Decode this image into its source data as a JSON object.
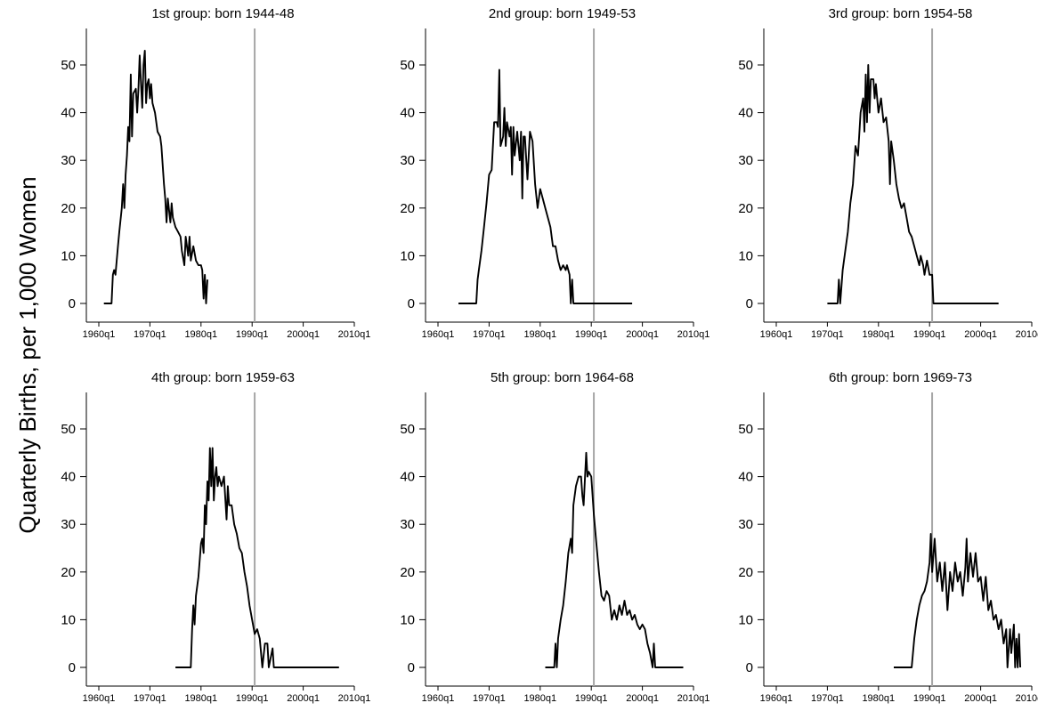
{
  "chart_data": {
    "type": "line",
    "ylabel": "Quarterly Births, per 1,000 Women",
    "ylim": [
      0,
      55
    ],
    "xlim": [
      "1960q1",
      "2010q1"
    ],
    "yticks": [
      0,
      10,
      20,
      30,
      40,
      50
    ],
    "xticks": [
      "1960q1",
      "1970q1",
      "1980q1",
      "1990q1",
      "2000q1",
      "2010q1"
    ],
    "reference_line_x": "1990q3",
    "panels": [
      {
        "title": "1st group: born 1944-48",
        "points": [
          [
            "1961q1",
            0
          ],
          [
            "1962q3",
            0
          ],
          [
            "1962q4",
            6
          ],
          [
            "1963q1",
            7
          ],
          [
            "1963q2",
            6
          ],
          [
            "1963q4",
            12
          ],
          [
            "1964q1",
            15
          ],
          [
            "1964q3",
            20
          ],
          [
            "1964q4",
            25
          ],
          [
            "1965q1",
            20
          ],
          [
            "1965q2",
            27
          ],
          [
            "1965q3",
            31
          ],
          [
            "1965q4",
            37
          ],
          [
            "1966q1",
            34
          ],
          [
            "1966q2",
            48
          ],
          [
            "1966q3",
            35
          ],
          [
            "1966q4",
            44
          ],
          [
            "1967q2",
            45
          ],
          [
            "1967q3",
            40
          ],
          [
            "1967q4",
            45
          ],
          [
            "1968q1",
            52
          ],
          [
            "1968q2",
            46
          ],
          [
            "1968q3",
            41
          ],
          [
            "1968q4",
            50
          ],
          [
            "1969q1",
            53
          ],
          [
            "1969q2",
            42
          ],
          [
            "1969q3",
            46
          ],
          [
            "1969q4",
            47
          ],
          [
            "1970q1",
            43
          ],
          [
            "1970q2",
            46
          ],
          [
            "1970q3",
            42
          ],
          [
            "1971q1",
            40
          ],
          [
            "1971q3",
            36
          ],
          [
            "1972q1",
            35
          ],
          [
            "1972q2",
            33
          ],
          [
            "1972q4",
            25
          ],
          [
            "1973q1",
            22
          ],
          [
            "1973q2",
            17
          ],
          [
            "1973q3",
            22
          ],
          [
            "1974q1",
            17
          ],
          [
            "1974q2",
            21
          ],
          [
            "1974q3",
            18
          ],
          [
            "1975q1",
            16
          ],
          [
            "1975q3",
            15
          ],
          [
            "1976q1",
            14
          ],
          [
            "1976q2",
            11
          ],
          [
            "1976q4",
            8
          ],
          [
            "1977q1",
            14
          ],
          [
            "1977q3",
            10
          ],
          [
            "1977q4",
            14
          ],
          [
            "1978q1",
            9
          ],
          [
            "1978q3",
            12
          ],
          [
            "1979q1",
            9
          ],
          [
            "1979q3",
            8
          ],
          [
            "1980q1",
            8
          ],
          [
            "1980q2",
            7
          ],
          [
            "1980q3",
            1
          ],
          [
            "1980q4",
            6
          ],
          [
            "1981q1",
            0
          ],
          [
            "1981q2",
            5
          ]
        ]
      },
      {
        "title": "2nd group: born 1949-53",
        "points": [
          [
            "1964q1",
            0
          ],
          [
            "1967q3",
            0
          ],
          [
            "1967q4",
            5
          ],
          [
            "1968q1",
            7
          ],
          [
            "1968q3",
            11
          ],
          [
            "1969q1",
            16
          ],
          [
            "1969q3",
            21
          ],
          [
            "1970q1",
            27
          ],
          [
            "1970q3",
            28
          ],
          [
            "1971q1",
            38
          ],
          [
            "1971q3",
            38
          ],
          [
            "1971q4",
            37
          ],
          [
            "1972q1",
            49
          ],
          [
            "1972q2",
            33
          ],
          [
            "1972q4",
            35
          ],
          [
            "1973q1",
            41
          ],
          [
            "1973q2",
            33
          ],
          [
            "1973q3",
            38
          ],
          [
            "1974q1",
            35
          ],
          [
            "1974q2",
            37
          ],
          [
            "1974q3",
            27
          ],
          [
            "1974q4",
            37
          ],
          [
            "1975q1",
            31
          ],
          [
            "1975q3",
            36
          ],
          [
            "1976q1",
            30
          ],
          [
            "1976q2",
            36
          ],
          [
            "1976q3",
            22
          ],
          [
            "1976q4",
            35
          ],
          [
            "1977q1",
            35
          ],
          [
            "1977q3",
            26
          ],
          [
            "1978q1",
            36
          ],
          [
            "1978q3",
            34
          ],
          [
            "1979q1",
            25
          ],
          [
            "1979q3",
            20
          ],
          [
            "1980q1",
            24
          ],
          [
            "1980q3",
            22
          ],
          [
            "1981q1",
            20
          ],
          [
            "1981q3",
            18
          ],
          [
            "1982q1",
            16
          ],
          [
            "1982q3",
            12
          ],
          [
            "1983q1",
            12
          ],
          [
            "1983q3",
            9
          ],
          [
            "1984q1",
            7
          ],
          [
            "1984q3",
            8
          ],
          [
            "1985q1",
            7
          ],
          [
            "1985q2",
            8
          ],
          [
            "1985q4",
            6
          ],
          [
            "1986q1",
            0
          ],
          [
            "1986q2",
            5
          ],
          [
            "1986q3",
            0
          ],
          [
            "1998q1",
            0
          ]
        ]
      },
      {
        "title": "3rd group: born 1954-58",
        "points": [
          [
            "1970q1",
            0
          ],
          [
            "1972q1",
            0
          ],
          [
            "1972q2",
            5
          ],
          [
            "1972q3",
            0
          ],
          [
            "1973q1",
            7
          ],
          [
            "1973q3",
            11
          ],
          [
            "1974q1",
            15
          ],
          [
            "1974q3",
            21
          ],
          [
            "1975q1",
            25
          ],
          [
            "1975q3",
            33
          ],
          [
            "1976q1",
            31
          ],
          [
            "1976q3",
            40
          ],
          [
            "1977q1",
            43
          ],
          [
            "1977q2",
            36
          ],
          [
            "1977q3",
            48
          ],
          [
            "1977q4",
            38
          ],
          [
            "1978q1",
            50
          ],
          [
            "1978q2",
            40
          ],
          [
            "1978q3",
            47
          ],
          [
            "1979q1",
            47
          ],
          [
            "1979q2",
            43
          ],
          [
            "1979q3",
            46
          ],
          [
            "1980q1",
            40
          ],
          [
            "1980q3",
            43
          ],
          [
            "1981q1",
            38
          ],
          [
            "1981q3",
            39
          ],
          [
            "1982q1",
            34
          ],
          [
            "1982q2",
            25
          ],
          [
            "1982q3",
            34
          ],
          [
            "1983q1",
            30
          ],
          [
            "1983q3",
            25
          ],
          [
            "1984q1",
            22
          ],
          [
            "1984q3",
            20
          ],
          [
            "1985q1",
            21
          ],
          [
            "1985q3",
            18
          ],
          [
            "1986q1",
            15
          ],
          [
            "1986q3",
            14
          ],
          [
            "1987q1",
            12
          ],
          [
            "1987q3",
            10
          ],
          [
            "1988q1",
            8
          ],
          [
            "1988q2",
            10
          ],
          [
            "1988q4",
            8
          ],
          [
            "1989q1",
            6
          ],
          [
            "1989q3",
            9
          ],
          [
            "1990q1",
            6
          ],
          [
            "1990q3",
            6
          ],
          [
            "1990q4",
            0
          ],
          [
            "2003q3",
            0
          ]
        ]
      },
      {
        "title": "4th group: born 1959-63",
        "points": [
          [
            "1975q1",
            0
          ],
          [
            "1978q1",
            0
          ],
          [
            "1978q2",
            8
          ],
          [
            "1978q3",
            13
          ],
          [
            "1978q4",
            9
          ],
          [
            "1979q1",
            15
          ],
          [
            "1979q3",
            19
          ],
          [
            "1980q1",
            26
          ],
          [
            "1980q2",
            27
          ],
          [
            "1980q3",
            24
          ],
          [
            "1980q4",
            34
          ],
          [
            "1981q1",
            30
          ],
          [
            "1981q2",
            39
          ],
          [
            "1981q3",
            35
          ],
          [
            "1981q4",
            46
          ],
          [
            "1982q1",
            38
          ],
          [
            "1982q2",
            46
          ],
          [
            "1982q3",
            35
          ],
          [
            "1982q4",
            40
          ],
          [
            "1983q1",
            42
          ],
          [
            "1983q2",
            38
          ],
          [
            "1983q3",
            40
          ],
          [
            "1984q1",
            38
          ],
          [
            "1984q3",
            40
          ],
          [
            "1985q1",
            31
          ],
          [
            "1985q2",
            38
          ],
          [
            "1985q3",
            34
          ],
          [
            "1986q1",
            34
          ],
          [
            "1986q3",
            30
          ],
          [
            "1987q1",
            28
          ],
          [
            "1987q3",
            25
          ],
          [
            "1988q1",
            24
          ],
          [
            "1988q3",
            20
          ],
          [
            "1989q1",
            17
          ],
          [
            "1989q3",
            13
          ],
          [
            "1990q1",
            10
          ],
          [
            "1990q3",
            7
          ],
          [
            "1991q1",
            8
          ],
          [
            "1991q3",
            6
          ],
          [
            "1992q1",
            0
          ],
          [
            "1992q3",
            5
          ],
          [
            "1993q1",
            5
          ],
          [
            "1993q2",
            0
          ],
          [
            "1994q1",
            4
          ],
          [
            "1994q2",
            0
          ],
          [
            "2007q1",
            0
          ]
        ]
      },
      {
        "title": "5th group: born 1964-68",
        "points": [
          [
            "1981q1",
            0
          ],
          [
            "1982q4",
            0
          ],
          [
            "1983q1",
            5
          ],
          [
            "1983q2",
            0
          ],
          [
            "1983q3",
            6
          ],
          [
            "1984q1",
            10
          ],
          [
            "1984q3",
            13
          ],
          [
            "1985q1",
            18
          ],
          [
            "1985q3",
            24
          ],
          [
            "1986q1",
            27
          ],
          [
            "1986q2",
            24
          ],
          [
            "1986q3",
            34
          ],
          [
            "1987q1",
            38
          ],
          [
            "1987q3",
            40
          ],
          [
            "1988q1",
            40
          ],
          [
            "1988q2",
            36
          ],
          [
            "1988q3",
            34
          ],
          [
            "1989q1",
            45
          ],
          [
            "1989q2",
            40
          ],
          [
            "1989q3",
            41
          ],
          [
            "1990q1",
            40
          ],
          [
            "1990q3",
            32
          ],
          [
            "1991q1",
            26
          ],
          [
            "1991q3",
            20
          ],
          [
            "1992q1",
            15
          ],
          [
            "1992q3",
            14
          ],
          [
            "1993q1",
            16
          ],
          [
            "1993q3",
            15
          ],
          [
            "1994q1",
            10
          ],
          [
            "1994q3",
            12
          ],
          [
            "1995q1",
            10
          ],
          [
            "1995q3",
            13
          ],
          [
            "1996q1",
            11
          ],
          [
            "1996q3",
            14
          ],
          [
            "1997q1",
            11
          ],
          [
            "1997q3",
            12
          ],
          [
            "1998q1",
            10
          ],
          [
            "1998q3",
            11
          ],
          [
            "1999q1",
            9
          ],
          [
            "1999q3",
            8
          ],
          [
            "2000q1",
            9
          ],
          [
            "2000q3",
            8
          ],
          [
            "2001q1",
            5
          ],
          [
            "2001q3",
            3
          ],
          [
            "2002q1",
            0
          ],
          [
            "2002q2",
            5
          ],
          [
            "2002q3",
            0
          ],
          [
            "2008q1",
            0
          ]
        ]
      },
      {
        "title": "6th group: born 1969-73",
        "points": [
          [
            "1983q1",
            0
          ],
          [
            "1986q3",
            0
          ],
          [
            "1987q1",
            6
          ],
          [
            "1987q3",
            10
          ],
          [
            "1988q1",
            13
          ],
          [
            "1988q3",
            15
          ],
          [
            "1989q1",
            16
          ],
          [
            "1989q3",
            18
          ],
          [
            "1990q1",
            22
          ],
          [
            "1990q2",
            28
          ],
          [
            "1990q3",
            20
          ],
          [
            "1991q1",
            27
          ],
          [
            "1991q3",
            18
          ],
          [
            "1992q1",
            22
          ],
          [
            "1992q3",
            16
          ],
          [
            "1993q1",
            22
          ],
          [
            "1993q3",
            12
          ],
          [
            "1994q1",
            20
          ],
          [
            "1994q3",
            16
          ],
          [
            "1995q1",
            22
          ],
          [
            "1995q3",
            18
          ],
          [
            "1996q1",
            20
          ],
          [
            "1996q3",
            15
          ],
          [
            "1997q1",
            21
          ],
          [
            "1997q2",
            27
          ],
          [
            "1997q3",
            18
          ],
          [
            "1998q1",
            24
          ],
          [
            "1998q3",
            19
          ],
          [
            "1999q1",
            24
          ],
          [
            "1999q3",
            18
          ],
          [
            "2000q1",
            19
          ],
          [
            "2000q3",
            14
          ],
          [
            "2001q1",
            19
          ],
          [
            "2001q3",
            12
          ],
          [
            "2002q1",
            14
          ],
          [
            "2002q3",
            10
          ],
          [
            "2003q1",
            11
          ],
          [
            "2003q3",
            8
          ],
          [
            "2004q1",
            10
          ],
          [
            "2004q3",
            5
          ],
          [
            "2005q1",
            8
          ],
          [
            "2005q2",
            0
          ],
          [
            "2005q4",
            8
          ],
          [
            "2006q1",
            3
          ],
          [
            "2006q3",
            9
          ],
          [
            "2006q4",
            0
          ],
          [
            "2007q1",
            6
          ],
          [
            "2007q2",
            0
          ],
          [
            "2007q3",
            7
          ],
          [
            "2007q4",
            0
          ]
        ]
      }
    ]
  }
}
